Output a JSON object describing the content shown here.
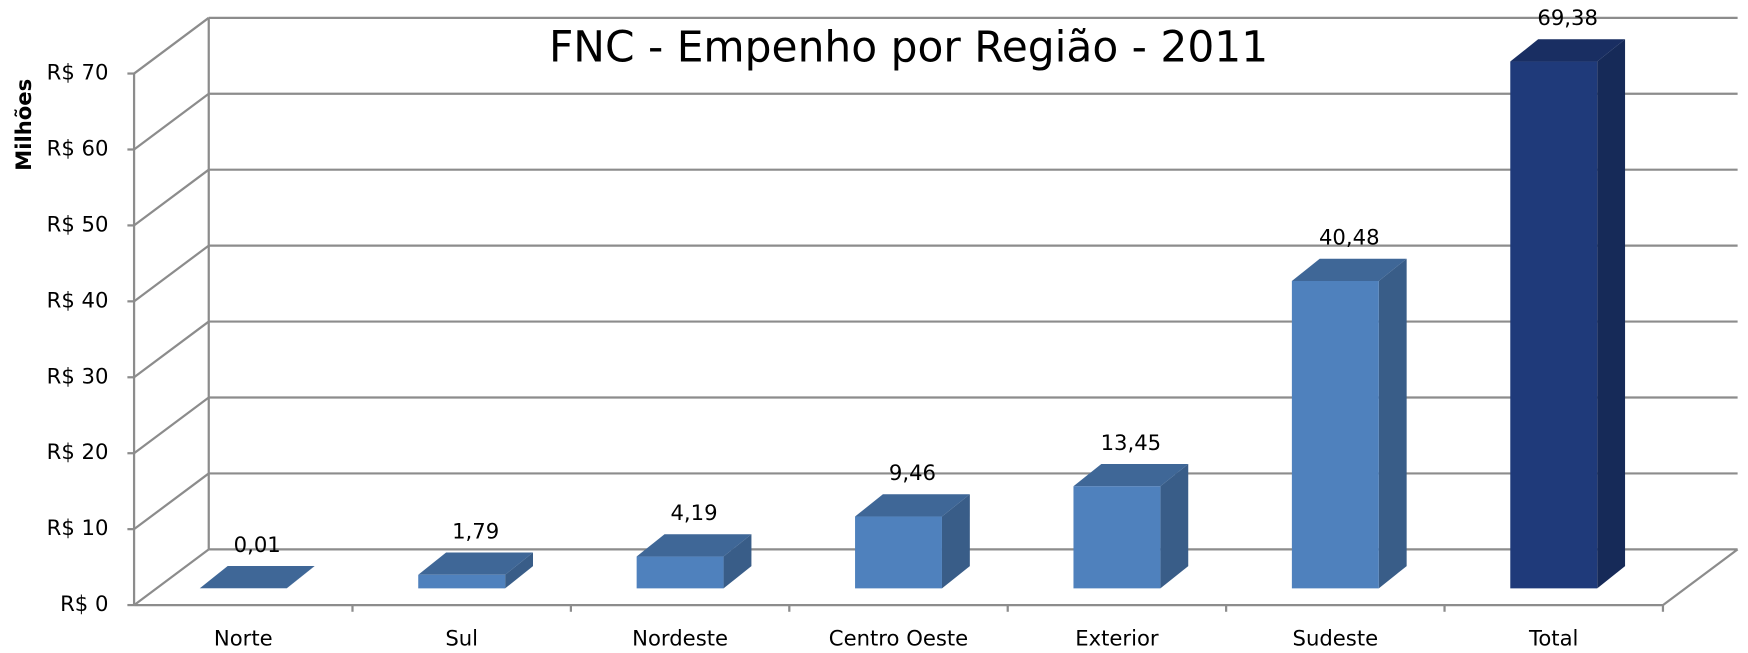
{
  "chart_data": {
    "type": "bar3d",
    "title": "FNC - Empenho por Região - 2011",
    "y_label": "Milhões",
    "categories": [
      "Norte",
      "Sul",
      "Nordeste",
      "Centro Oeste",
      "Exterior",
      "Sudeste",
      "Total"
    ],
    "values": [
      0.01,
      1.79,
      4.19,
      9.46,
      13.45,
      40.48,
      69.38
    ],
    "value_labels": [
      "0,01",
      "1,79",
      "4,19",
      "9,46",
      "13,45",
      "40,48",
      "69,38"
    ],
    "colors": [
      "#4f81bd",
      "#4f81bd",
      "#4f81bd",
      "#4f81bd",
      "#4f81bd",
      "#4f81bd",
      "#1f3a7a"
    ],
    "ylim": [
      0,
      70
    ],
    "yticks": [
      {
        "value": 0,
        "label": "R$ 0"
      },
      {
        "value": 10,
        "label": "R$ 10"
      },
      {
        "value": 20,
        "label": "R$ 20"
      },
      {
        "value": 30,
        "label": "R$ 30"
      },
      {
        "value": 40,
        "label": "R$ 40"
      },
      {
        "value": 50,
        "label": "R$ 50"
      },
      {
        "value": 60,
        "label": "R$ 60"
      },
      {
        "value": 70,
        "label": "R$ 70"
      }
    ],
    "grid": true
  }
}
